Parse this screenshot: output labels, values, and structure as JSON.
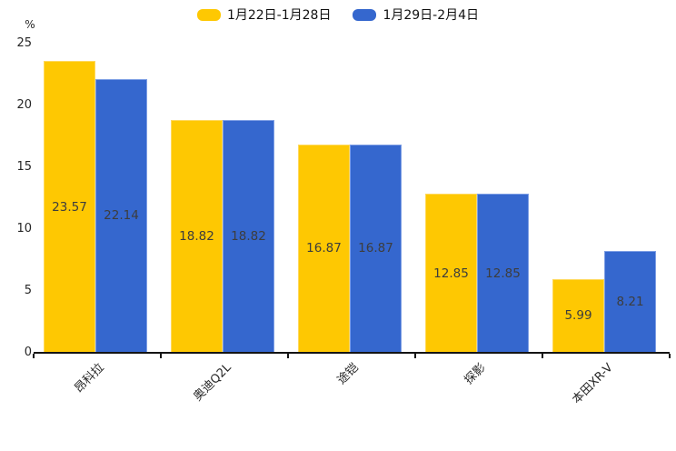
{
  "chart_data": {
    "type": "bar",
    "title": "",
    "categories": [
      "昂科拉",
      "奥迪Q2L",
      "途铠",
      "探影",
      "本田XR-V"
    ],
    "series": [
      {
        "name": "1月22日-1月28日",
        "color": "#FEC802",
        "edge": "#FFD95C",
        "values": [
          23.57,
          18.82,
          16.87,
          12.85,
          5.99
        ]
      },
      {
        "name": "1月29日-2月4日",
        "color": "#3567CE",
        "edge": "#7D9EE4",
        "values": [
          22.14,
          18.82,
          16.87,
          12.85,
          8.21
        ]
      }
    ],
    "ylabel_unit": "%",
    "yticks": [
      0,
      5,
      10,
      15,
      20,
      25
    ],
    "ylim": [
      0,
      25
    ],
    "grid": false,
    "legend_position": "top-center",
    "value_labels": "inside-center",
    "value_label_format": "2-decimals",
    "xlabel_rotation_deg": 45
  }
}
